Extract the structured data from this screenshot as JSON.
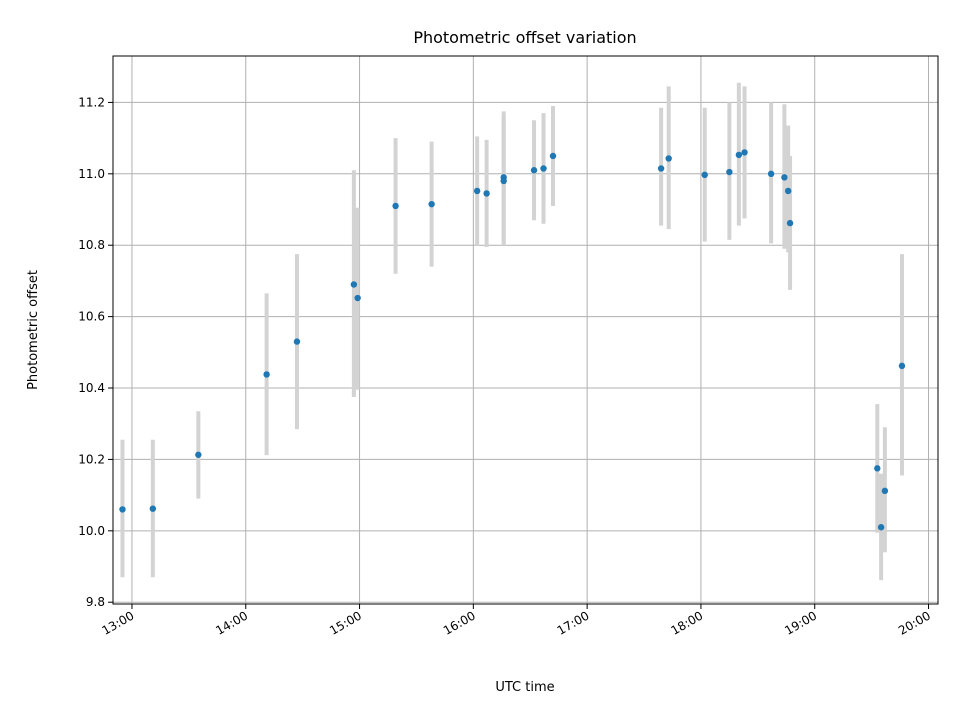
{
  "chart_data": {
    "type": "scatter",
    "title": "Photometric offset variation",
    "xlabel": "UTC time",
    "ylabel": "Photometric offset",
    "xlim": [
      "12:50",
      "20:05"
    ],
    "ylim": [
      9.795,
      11.33
    ],
    "grid": true,
    "x_ticks": [
      "13:00",
      "14:00",
      "15:00",
      "16:00",
      "17:00",
      "18:00",
      "19:00",
      "20:00"
    ],
    "y_ticks": [
      "9.8",
      "10.0",
      "10.2",
      "10.4",
      "10.6",
      "10.8",
      "11.0",
      "11.2"
    ],
    "colors": {
      "point": "#1f77b4",
      "errorbar": "#d3d3d3",
      "grid": "#b0b0b0"
    },
    "points": [
      {
        "x": "12:55",
        "y": 10.06,
        "ylow": 9.87,
        "yhigh": 10.255
      },
      {
        "x": "13:11",
        "y": 10.062,
        "ylow": 9.87,
        "yhigh": 10.255
      },
      {
        "x": "13:35",
        "y": 10.213,
        "ylow": 10.09,
        "yhigh": 10.335
      },
      {
        "x": "14:11",
        "y": 10.438,
        "ylow": 10.212,
        "yhigh": 10.665
      },
      {
        "x": "14:27",
        "y": 10.53,
        "ylow": 10.285,
        "yhigh": 10.775
      },
      {
        "x": "14:57",
        "y": 10.69,
        "ylow": 10.375,
        "yhigh": 11.01
      },
      {
        "x": "14:59",
        "y": 10.652,
        "ylow": 10.395,
        "yhigh": 10.905
      },
      {
        "x": "15:19",
        "y": 10.91,
        "ylow": 10.72,
        "yhigh": 11.1
      },
      {
        "x": "15:38",
        "y": 10.915,
        "ylow": 10.74,
        "yhigh": 11.09
      },
      {
        "x": "16:02",
        "y": 10.952,
        "ylow": 10.8,
        "yhigh": 11.105
      },
      {
        "x": "16:07",
        "y": 10.945,
        "ylow": 10.795,
        "yhigh": 11.095
      },
      {
        "x": "16:16",
        "y": 10.99,
        "ylow": 10.805,
        "yhigh": 11.175
      },
      {
        "x": "16:16",
        "y": 10.98,
        "ylow": 10.8,
        "yhigh": 11.16
      },
      {
        "x": "16:32",
        "y": 11.01,
        "ylow": 10.87,
        "yhigh": 11.15
      },
      {
        "x": "16:37",
        "y": 11.015,
        "ylow": 10.86,
        "yhigh": 11.17
      },
      {
        "x": "16:42",
        "y": 11.05,
        "ylow": 10.91,
        "yhigh": 11.19
      },
      {
        "x": "17:39",
        "y": 11.015,
        "ylow": 10.855,
        "yhigh": 11.185
      },
      {
        "x": "17:43",
        "y": 11.043,
        "ylow": 10.845,
        "yhigh": 11.245
      },
      {
        "x": "18:02",
        "y": 10.997,
        "ylow": 10.81,
        "yhigh": 11.185
      },
      {
        "x": "18:15",
        "y": 11.005,
        "ylow": 10.815,
        "yhigh": 11.2
      },
      {
        "x": "18:20",
        "y": 11.053,
        "ylow": 10.855,
        "yhigh": 11.255
      },
      {
        "x": "18:23",
        "y": 11.06,
        "ylow": 10.875,
        "yhigh": 11.245
      },
      {
        "x": "18:37",
        "y": 11.0,
        "ylow": 10.805,
        "yhigh": 11.2
      },
      {
        "x": "18:44",
        "y": 10.99,
        "ylow": 10.79,
        "yhigh": 11.195
      },
      {
        "x": "18:46",
        "y": 10.952,
        "ylow": 10.78,
        "yhigh": 11.135
      },
      {
        "x": "18:47",
        "y": 10.862,
        "ylow": 10.675,
        "yhigh": 11.05
      },
      {
        "x": "19:33",
        "y": 10.175,
        "ylow": 9.995,
        "yhigh": 10.355
      },
      {
        "x": "19:35",
        "y": 10.01,
        "ylow": 9.862,
        "yhigh": 10.16
      },
      {
        "x": "19:37",
        "y": 10.112,
        "ylow": 9.94,
        "yhigh": 10.29
      },
      {
        "x": "19:46",
        "y": 10.462,
        "ylow": 10.155,
        "yhigh": 10.775
      }
    ]
  }
}
